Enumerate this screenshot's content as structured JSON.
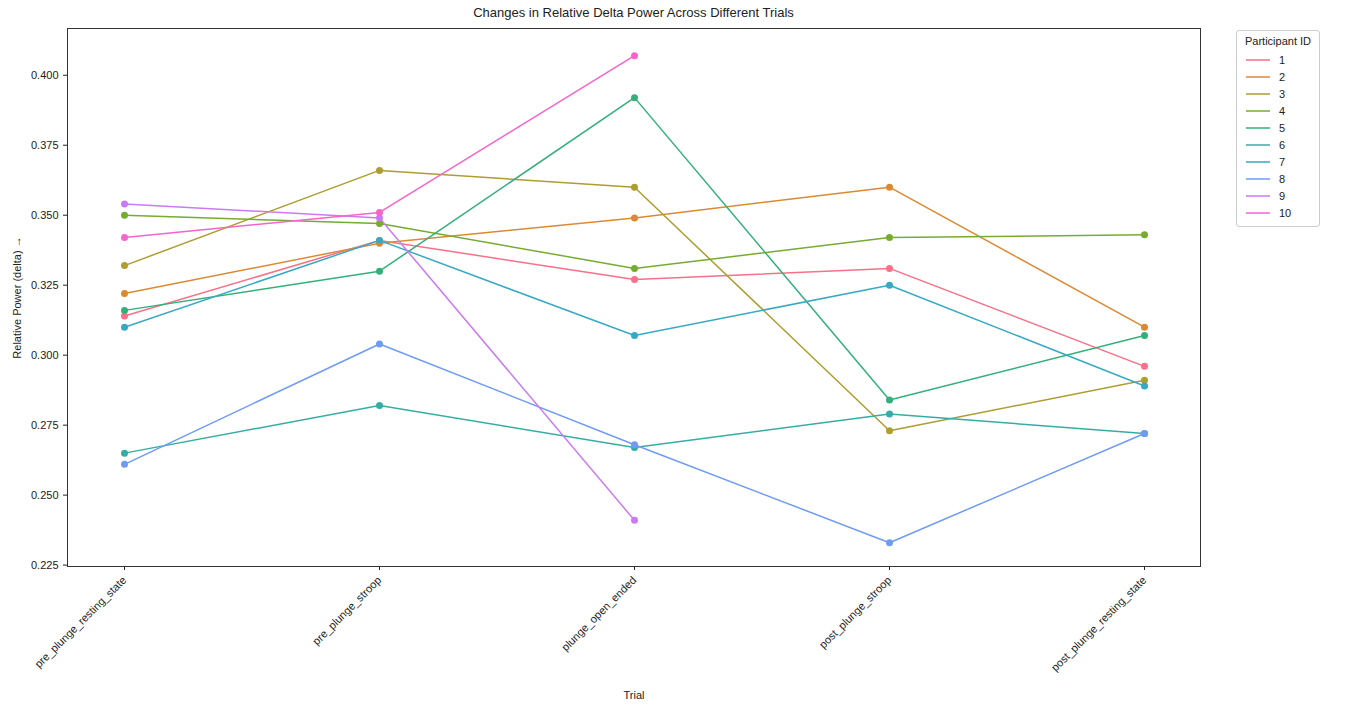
{
  "chart_data": {
    "type": "line",
    "title": "Changes in Relative Delta Power Across Different Trials",
    "x_label": "Trial",
    "y_label": "Relative Power (delta)",
    "legend_title": "Participant ID",
    "legend": "right",
    "grid": false,
    "marker": "circle",
    "categories": [
      "pre_plunge_resting_state",
      "pre_plunge_stroop",
      "plunge_open_ended",
      "post_plunge_stroop",
      "post_plunge_resting_state"
    ],
    "ylim": [
      0.2245,
      0.4167
    ],
    "yticks": [
      0.225,
      {
        "value": 0.25,
        "label": "0.250"
      },
      0.275,
      {
        "value": 0.3,
        "label": "0.300"
      },
      0.325,
      {
        "value": 0.35,
        "label": "0.350"
      },
      0.375,
      {
        "value": 0.4,
        "label": "0.400"
      }
    ],
    "series": [
      {
        "name": "1",
        "color": "#f77189",
        "values": [
          0.314,
          0.341,
          0.327,
          0.331,
          0.296
        ]
      },
      {
        "name": "2",
        "color": "#dc8932",
        "values": [
          0.322,
          0.34,
          0.349,
          0.36,
          0.31
        ]
      },
      {
        "name": "3",
        "color": "#ae9d31",
        "values": [
          0.332,
          0.366,
          0.36,
          0.273,
          0.291
        ]
      },
      {
        "name": "4",
        "color": "#77ab31",
        "values": [
          0.35,
          0.347,
          0.331,
          0.342,
          0.343
        ]
      },
      {
        "name": "5",
        "color": "#33b07a",
        "values": [
          0.316,
          0.33,
          0.392,
          0.284,
          0.307
        ]
      },
      {
        "name": "6",
        "color": "#36ada4",
        "values": [
          0.265,
          0.282,
          0.267,
          0.279,
          0.272
        ]
      },
      {
        "name": "7",
        "color": "#38a9c5",
        "values": [
          0.31,
          0.341,
          0.307,
          0.325,
          0.289
        ]
      },
      {
        "name": "8",
        "color": "#6e9bf4",
        "values": [
          0.261,
          0.304,
          0.268,
          0.233,
          0.272
        ]
      },
      {
        "name": "9",
        "color": "#cc7af4",
        "values": [
          0.354,
          0.349,
          0.241,
          null,
          null
        ]
      },
      {
        "name": "10",
        "color": "#f565cc",
        "values": [
          0.342,
          0.351,
          0.407,
          null,
          null
        ]
      }
    ]
  }
}
